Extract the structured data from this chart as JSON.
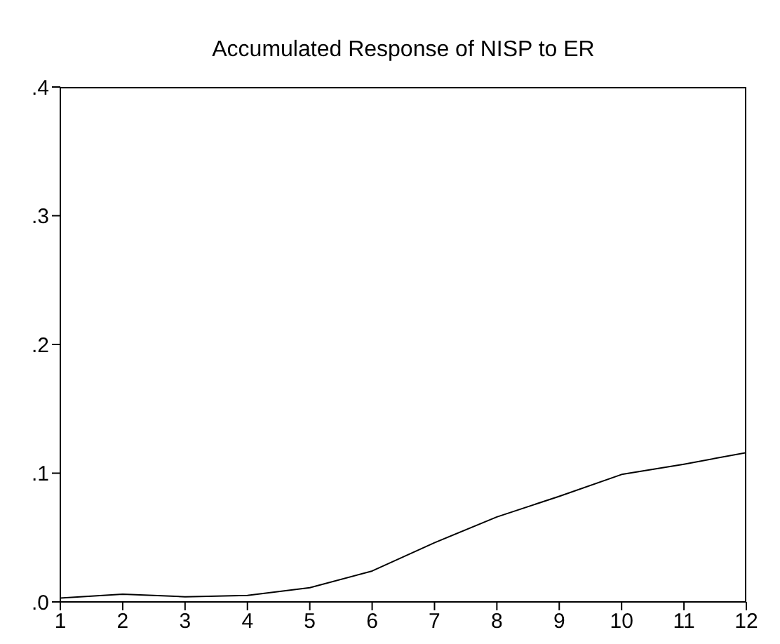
{
  "chart_data": {
    "type": "line",
    "title": "Accumulated Response of NISP to ER",
    "x": [
      1,
      2,
      3,
      4,
      5,
      6,
      7,
      8,
      9,
      10,
      11,
      12
    ],
    "series": [
      {
        "color": "#000000",
        "values": [
          0.003,
          0.006,
          0.004,
          0.005,
          0.011,
          0.024,
          0.046,
          0.066,
          0.082,
          0.099,
          0.107,
          0.116
        ]
      }
    ],
    "xlim": [
      1,
      12
    ],
    "xticks": [
      1,
      2,
      3,
      4,
      5,
      6,
      7,
      8,
      9,
      10,
      11,
      12
    ],
    "ylim": [
      0,
      0.4
    ],
    "yticks": [
      {
        "value": 0,
        "label": ".0"
      },
      {
        "value": 0.1,
        "label": ".1"
      },
      {
        "value": 0.2,
        "label": ".2"
      },
      {
        "value": 0.3,
        "label": ".3"
      },
      {
        "value": 0.4,
        "label": ".4"
      }
    ],
    "grid": false,
    "marker": "none",
    "line_style": "solid"
  }
}
